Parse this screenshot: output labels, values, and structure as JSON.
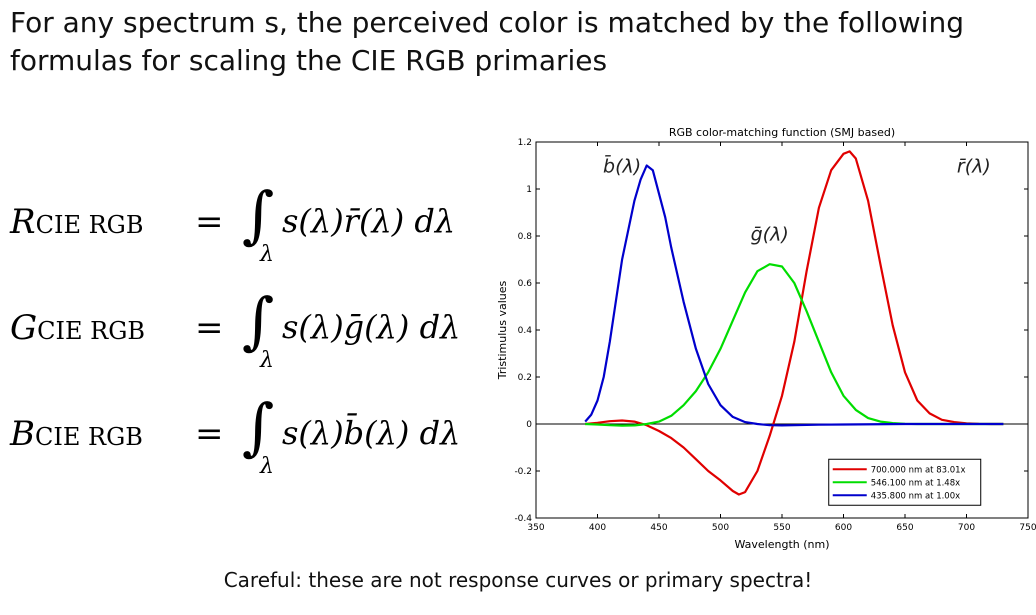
{
  "title": "For any spectrum s, the perceived color is matched by the following formulas for scaling the CIE RGB primaries",
  "equations": [
    {
      "lhs": "R",
      "sub": "CIE RGB",
      "eq": "=",
      "int": "∫",
      "lambda": "λ",
      "integrand": "s(λ)r̄(λ) dλ"
    },
    {
      "lhs": "G",
      "sub": "CIE RGB",
      "eq": "=",
      "int": "∫",
      "lambda": "λ",
      "integrand": "s(λ)ḡ(λ) dλ"
    },
    {
      "lhs": "B",
      "sub": "CIE RGB",
      "eq": "=",
      "int": "∫",
      "lambda": "λ",
      "integrand": "s(λ)b̄(λ) dλ"
    }
  ],
  "caption": "Careful: these are not response curves or primary spectra!",
  "chart_data": {
    "type": "line",
    "title": "RGB color-matching function (SMJ based)",
    "xlabel": "Wavelength (nm)",
    "ylabel": "Tristimulus values",
    "xlim": [
      350,
      750
    ],
    "ylim": [
      -0.4,
      1.2
    ],
    "xticks": [
      350,
      400,
      450,
      500,
      550,
      600,
      650,
      700,
      750
    ],
    "yticks": [
      -0.4,
      -0.2,
      0,
      0.2,
      0.4,
      0.6,
      0.8,
      1,
      1.2
    ],
    "grid": false,
    "legend_position": "lower-right",
    "series": [
      {
        "name": "700.000 nm at 83.01x",
        "color": "#e00000",
        "curve_label": "r̄(λ)",
        "x": [
          390,
          400,
          410,
          420,
          430,
          440,
          450,
          460,
          470,
          480,
          490,
          500,
          510,
          515,
          520,
          530,
          540,
          550,
          560,
          570,
          580,
          590,
          600,
          605,
          610,
          620,
          630,
          640,
          650,
          660,
          670,
          680,
          690,
          700,
          710,
          720,
          730
        ],
        "y": [
          0.0,
          0.005,
          0.012,
          0.015,
          0.01,
          -0.005,
          -0.03,
          -0.06,
          -0.1,
          -0.15,
          -0.2,
          -0.24,
          -0.285,
          -0.3,
          -0.29,
          -0.2,
          -0.05,
          0.12,
          0.35,
          0.65,
          0.92,
          1.08,
          1.15,
          1.16,
          1.13,
          0.95,
          0.68,
          0.42,
          0.22,
          0.1,
          0.045,
          0.018,
          0.008,
          0.003,
          0.001,
          0.0,
          0.0
        ]
      },
      {
        "name": "546.100 nm at 1.48x",
        "color": "#00dd00",
        "curve_label": "ḡ(λ)",
        "x": [
          390,
          400,
          410,
          420,
          430,
          440,
          450,
          460,
          470,
          480,
          490,
          500,
          510,
          520,
          530,
          540,
          550,
          560,
          570,
          580,
          590,
          600,
          610,
          620,
          630,
          640,
          650,
          660,
          670,
          680,
          700,
          730
        ],
        "y": [
          0.0,
          -0.002,
          -0.005,
          -0.007,
          -0.006,
          0.0,
          0.01,
          0.035,
          0.08,
          0.14,
          0.22,
          0.32,
          0.44,
          0.56,
          0.65,
          0.68,
          0.67,
          0.6,
          0.48,
          0.35,
          0.22,
          0.12,
          0.06,
          0.025,
          0.01,
          0.004,
          0.001,
          0.0,
          0.0,
          0.0,
          0.0,
          0.0
        ]
      },
      {
        "name": "435.800 nm at 1.00x",
        "color": "#0000cc",
        "curve_label": "b̄(λ)",
        "x": [
          390,
          395,
          400,
          405,
          410,
          420,
          430,
          435,
          440,
          445,
          450,
          455,
          460,
          470,
          480,
          490,
          500,
          510,
          520,
          530,
          540,
          550,
          560,
          580,
          600,
          650,
          700,
          730
        ],
        "y": [
          0.01,
          0.04,
          0.1,
          0.2,
          0.35,
          0.7,
          0.95,
          1.04,
          1.1,
          1.08,
          0.98,
          0.88,
          0.75,
          0.52,
          0.32,
          0.17,
          0.08,
          0.03,
          0.008,
          0.0,
          -0.005,
          -0.006,
          -0.005,
          -0.003,
          -0.002,
          0.0,
          0.0,
          0.0
        ]
      }
    ]
  }
}
